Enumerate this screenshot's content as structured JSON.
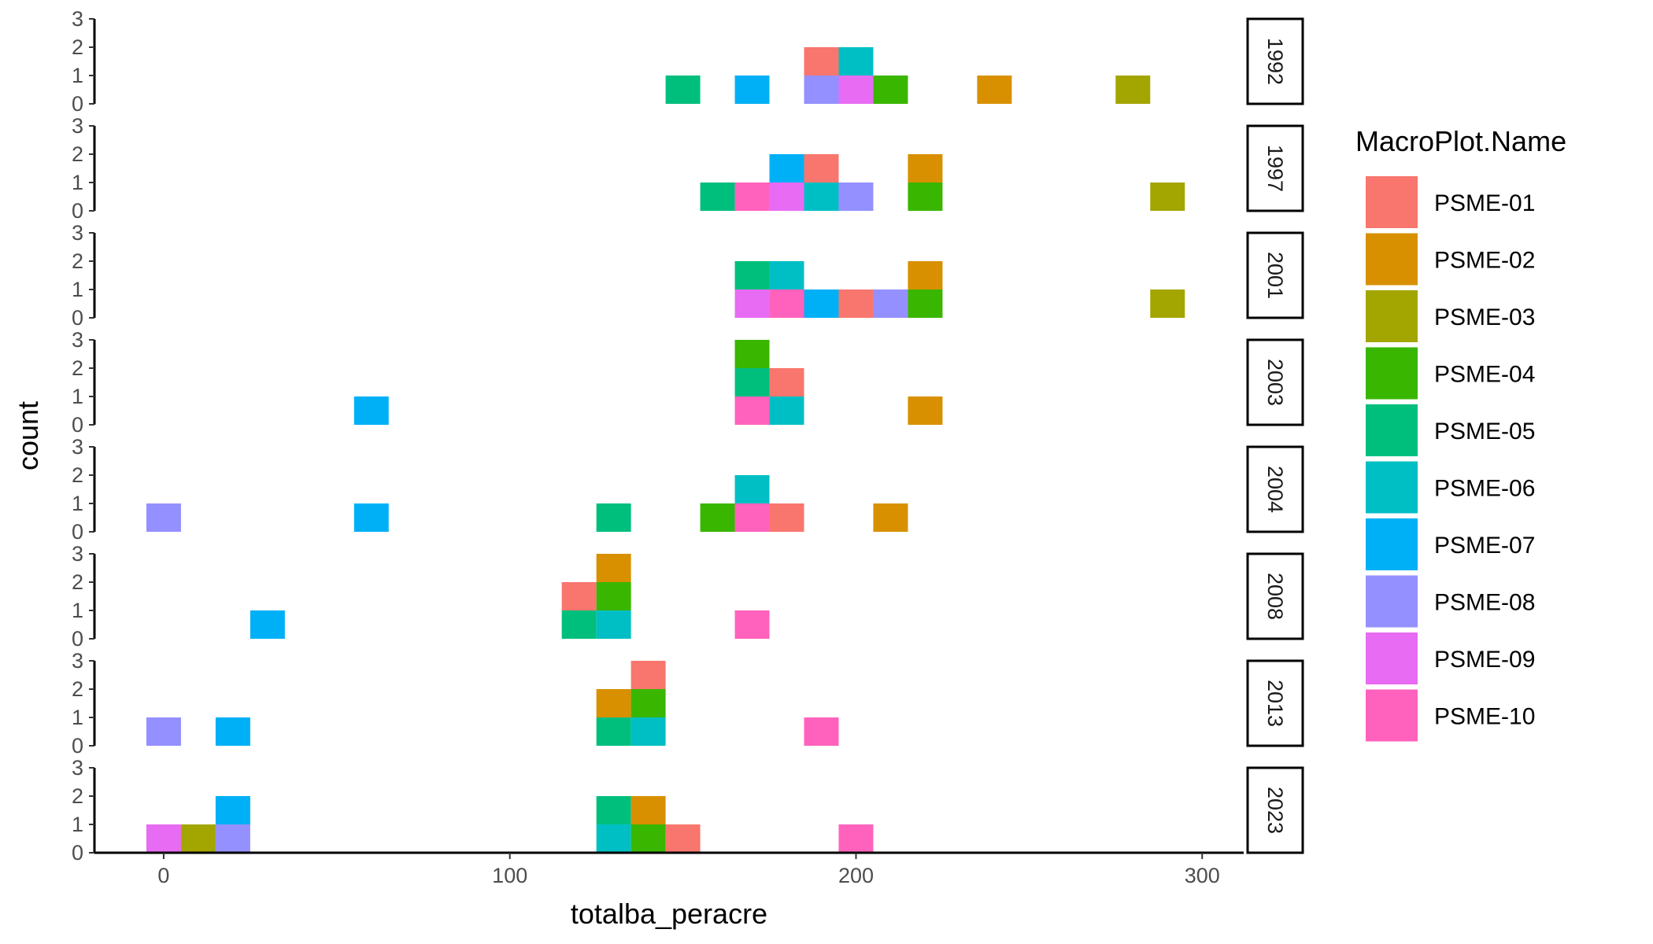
{
  "chart_data": {
    "type": "histogram-facet",
    "x_label": "totalba_peracre",
    "y_label": "count",
    "x_range": [
      -20,
      312
    ],
    "x_ticks": [
      0,
      100,
      200,
      300
    ],
    "y_range": [
      0,
      3
    ],
    "y_ticks": [
      0,
      1,
      2,
      3
    ],
    "bin_width": 10,
    "legend_title": "MacroPlot.Name",
    "legend_position": "right",
    "series": [
      {
        "name": "PSME-01",
        "color": "#F8766D"
      },
      {
        "name": "PSME-02",
        "color": "#D89000"
      },
      {
        "name": "PSME-03",
        "color": "#A3A500"
      },
      {
        "name": "PSME-04",
        "color": "#39B600"
      },
      {
        "name": "PSME-05",
        "color": "#00BF7D"
      },
      {
        "name": "PSME-06",
        "color": "#00BFC4"
      },
      {
        "name": "PSME-07",
        "color": "#00B0F6"
      },
      {
        "name": "PSME-08",
        "color": "#9590FF"
      },
      {
        "name": "PSME-09",
        "color": "#E76BF3"
      },
      {
        "name": "PSME-10",
        "color": "#FF62BC"
      }
    ],
    "panels": [
      {
        "label": "1992",
        "bars": [
          {
            "x": 150,
            "series": "PSME-05",
            "count": 1
          },
          {
            "x": 170,
            "series": "PSME-07",
            "count": 1
          },
          {
            "x": 190,
            "series": "PSME-08",
            "count": 1
          },
          {
            "x": 190,
            "series": "PSME-01",
            "count": 1
          },
          {
            "x": 200,
            "series": "PSME-09",
            "count": 1
          },
          {
            "x": 200,
            "series": "PSME-06",
            "count": 1
          },
          {
            "x": 210,
            "series": "PSME-04",
            "count": 1
          },
          {
            "x": 240,
            "series": "PSME-02",
            "count": 1
          },
          {
            "x": 280,
            "series": "PSME-03",
            "count": 1
          }
        ]
      },
      {
        "label": "1997",
        "bars": [
          {
            "x": 160,
            "series": "PSME-05",
            "count": 1
          },
          {
            "x": 170,
            "series": "PSME-10",
            "count": 1
          },
          {
            "x": 180,
            "series": "PSME-09",
            "count": 1
          },
          {
            "x": 180,
            "series": "PSME-07",
            "count": 1
          },
          {
            "x": 190,
            "series": "PSME-06",
            "count": 1
          },
          {
            "x": 190,
            "series": "PSME-01",
            "count": 1
          },
          {
            "x": 200,
            "series": "PSME-08",
            "count": 1
          },
          {
            "x": 220,
            "series": "PSME-04",
            "count": 1
          },
          {
            "x": 220,
            "series": "PSME-02",
            "count": 1
          },
          {
            "x": 290,
            "series": "PSME-03",
            "count": 1
          }
        ]
      },
      {
        "label": "2001",
        "bars": [
          {
            "x": 170,
            "series": "PSME-09",
            "count": 1
          },
          {
            "x": 170,
            "series": "PSME-05",
            "count": 1
          },
          {
            "x": 180,
            "series": "PSME-10",
            "count": 1
          },
          {
            "x": 180,
            "series": "PSME-06",
            "count": 1
          },
          {
            "x": 190,
            "series": "PSME-07",
            "count": 1
          },
          {
            "x": 200,
            "series": "PSME-01",
            "count": 1
          },
          {
            "x": 210,
            "series": "PSME-08",
            "count": 1
          },
          {
            "x": 220,
            "series": "PSME-04",
            "count": 1
          },
          {
            "x": 220,
            "series": "PSME-02",
            "count": 1
          },
          {
            "x": 290,
            "series": "PSME-03",
            "count": 1
          }
        ]
      },
      {
        "label": "2003",
        "bars": [
          {
            "x": 60,
            "series": "PSME-07",
            "count": 1
          },
          {
            "x": 170,
            "series": "PSME-10",
            "count": 1
          },
          {
            "x": 170,
            "series": "PSME-05",
            "count": 1
          },
          {
            "x": 170,
            "series": "PSME-04",
            "count": 1
          },
          {
            "x": 180,
            "series": "PSME-06",
            "count": 1
          },
          {
            "x": 180,
            "series": "PSME-01",
            "count": 1
          },
          {
            "x": 220,
            "series": "PSME-02",
            "count": 1
          }
        ]
      },
      {
        "label": "2004",
        "bars": [
          {
            "x": 0,
            "series": "PSME-08",
            "count": 1
          },
          {
            "x": 60,
            "series": "PSME-07",
            "count": 1
          },
          {
            "x": 130,
            "series": "PSME-05",
            "count": 1
          },
          {
            "x": 160,
            "series": "PSME-04",
            "count": 1
          },
          {
            "x": 170,
            "series": "PSME-10",
            "count": 1
          },
          {
            "x": 170,
            "series": "PSME-06",
            "count": 1
          },
          {
            "x": 180,
            "series": "PSME-01",
            "count": 1
          },
          {
            "x": 210,
            "series": "PSME-02",
            "count": 1
          }
        ]
      },
      {
        "label": "2008",
        "bars": [
          {
            "x": 30,
            "series": "PSME-07",
            "count": 1
          },
          {
            "x": 120,
            "series": "PSME-05",
            "count": 1
          },
          {
            "x": 120,
            "series": "PSME-01",
            "count": 1
          },
          {
            "x": 130,
            "series": "PSME-06",
            "count": 1
          },
          {
            "x": 130,
            "series": "PSME-04",
            "count": 1
          },
          {
            "x": 130,
            "series": "PSME-02",
            "count": 1
          },
          {
            "x": 170,
            "series": "PSME-10",
            "count": 1
          }
        ]
      },
      {
        "label": "2013",
        "bars": [
          {
            "x": 0,
            "series": "PSME-08",
            "count": 1
          },
          {
            "x": 20,
            "series": "PSME-07",
            "count": 1
          },
          {
            "x": 130,
            "series": "PSME-05",
            "count": 1
          },
          {
            "x": 130,
            "series": "PSME-02",
            "count": 1
          },
          {
            "x": 140,
            "series": "PSME-06",
            "count": 1
          },
          {
            "x": 140,
            "series": "PSME-04",
            "count": 1
          },
          {
            "x": 140,
            "series": "PSME-01",
            "count": 1
          },
          {
            "x": 190,
            "series": "PSME-10",
            "count": 1
          }
        ]
      },
      {
        "label": "2023",
        "bars": [
          {
            "x": 0,
            "series": "PSME-09",
            "count": 1
          },
          {
            "x": 10,
            "series": "PSME-03",
            "count": 1
          },
          {
            "x": 20,
            "series": "PSME-08",
            "count": 1
          },
          {
            "x": 20,
            "series": "PSME-07",
            "count": 1
          },
          {
            "x": 130,
            "series": "PSME-06",
            "count": 1
          },
          {
            "x": 130,
            "series": "PSME-05",
            "count": 1
          },
          {
            "x": 140,
            "series": "PSME-04",
            "count": 1
          },
          {
            "x": 140,
            "series": "PSME-02",
            "count": 1
          },
          {
            "x": 150,
            "series": "PSME-01",
            "count": 1
          },
          {
            "x": 200,
            "series": "PSME-10",
            "count": 1
          }
        ]
      }
    ]
  }
}
